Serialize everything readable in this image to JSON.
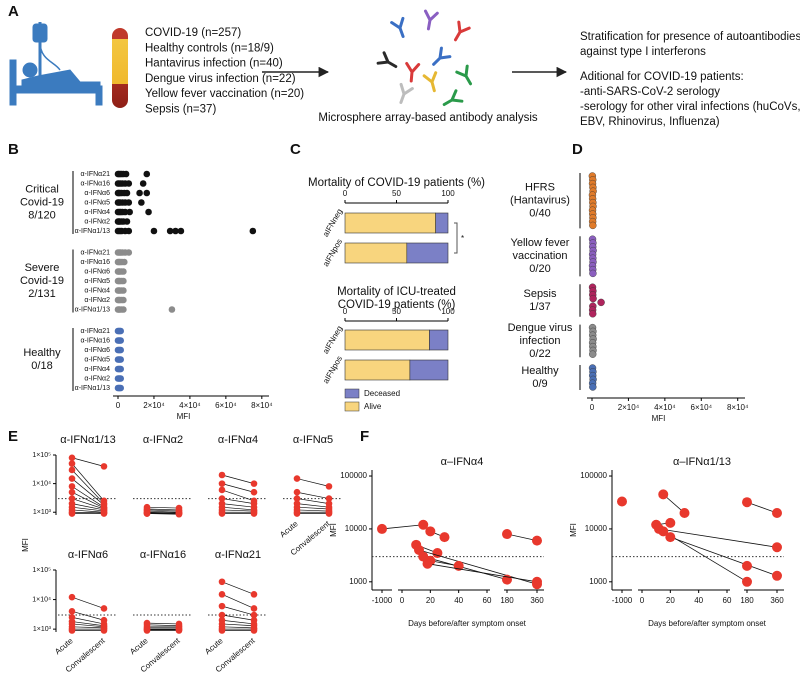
{
  "figure_a": {
    "panel": "A",
    "cohorts": [
      "COVID-19 (n=257)",
      "Healthy controls (n=18/9)",
      "Hantavirus infection (n=40)",
      "Dengue virus infection (n=22)",
      "Yellow fever vaccination (n=20)",
      "Sepsis (n=37)"
    ],
    "caption": "Microsphere array-based antibody analysis",
    "outcome": [
      "Stratification for presence of autoantibodies",
      "against type I interferons"
    ],
    "additional": [
      "Aditional for COVID-19 patients:",
      "-anti-SARS-CoV-2 serology",
      "-serology for other viral infections (huCoVs,",
      "EBV, Rhinovirus, Influenza)"
    ]
  },
  "chart_data": [
    {
      "type": "dot",
      "panel": "B",
      "xlabel": "MFI",
      "xlim": [
        0,
        84000
      ],
      "xticks": [
        0,
        {
          "value": 20000,
          "label": "2×10⁴"
        },
        {
          "value": 40000,
          "label": "4×10⁴"
        },
        {
          "value": 60000,
          "label": "6×10⁴"
        },
        {
          "value": 80000,
          "label": "8×10⁴"
        }
      ],
      "groups": [
        {
          "label": [
            "Critical",
            "Covid-19",
            "8/120"
          ],
          "color": "#111111",
          "rows": [
            {
              "name": "α-IFNα21",
              "values": [
                0,
                500,
                1200,
                2000,
                3000,
                4500,
                16000
              ]
            },
            {
              "name": "α-IFNα16",
              "values": [
                0,
                600,
                1500,
                2500,
                4000,
                6000,
                14000
              ]
            },
            {
              "name": "α-IFNα6",
              "values": [
                0,
                400,
                1000,
                2000,
                3500,
                5000,
                12000,
                16000
              ]
            },
            {
              "name": "α-IFNα5",
              "values": [
                0,
                500,
                1200,
                2500,
                4000,
                6000,
                13000
              ]
            },
            {
              "name": "α-IFNα4",
              "values": [
                0,
                800,
                1500,
                2500,
                4000,
                6500,
                17000
              ]
            },
            {
              "name": "α-IFNα2",
              "values": [
                0,
                500,
                1000,
                2000,
                3000,
                5000
              ]
            },
            {
              "name": "α-IFNα1/13",
              "values": [
                0,
                1000,
                2000,
                4000,
                6000,
                20000,
                29000,
                32000,
                35000,
                75000
              ]
            }
          ]
        },
        {
          "label": [
            "Severe",
            "Covid-19",
            "2/131"
          ],
          "color": "#8c8c8c",
          "rows": [
            {
              "name": "α-IFNα21",
              "values": [
                0,
                800,
                1500,
                2500,
                4000,
                6000
              ]
            },
            {
              "name": "α-IFNα16",
              "values": [
                0,
                600,
                1200,
                2200,
                3500
              ]
            },
            {
              "name": "α-IFNα6",
              "values": [
                0,
                500,
                1000,
                2000,
                3000
              ]
            },
            {
              "name": "α-IFNα5",
              "values": [
                0,
                500,
                1000,
                2000,
                3000
              ]
            },
            {
              "name": "α-IFNα4",
              "values": [
                0,
                500,
                1000,
                2000,
                3000
              ]
            },
            {
              "name": "α-IFNα2",
              "values": [
                0,
                500,
                1000,
                2000,
                3000
              ]
            },
            {
              "name": "α-IFNα1/13",
              "values": [
                0,
                500,
                1000,
                2000,
                3000,
                30000
              ]
            }
          ]
        },
        {
          "label": [
            "Healthy",
            "0/18"
          ],
          "color": "#4a6fb5",
          "rows": [
            {
              "name": "α-IFNα21",
              "values": [
                0,
                500,
                1000,
                1500
              ]
            },
            {
              "name": "α-IFNα16",
              "values": [
                0,
                500,
                1000,
                1500
              ]
            },
            {
              "name": "α-IFNα6",
              "values": [
                0,
                500,
                1000,
                1500
              ]
            },
            {
              "name": "α-IFNα5",
              "values": [
                0,
                500,
                1000,
                1500
              ]
            },
            {
              "name": "α-IFNα4",
              "values": [
                0,
                500,
                1000,
                1500
              ]
            },
            {
              "name": "α-IFNα2",
              "values": [
                0,
                500,
                1000,
                1500
              ]
            },
            {
              "name": "α-IFNα1/13",
              "values": [
                0,
                500,
                1000,
                1500
              ]
            }
          ]
        }
      ]
    },
    {
      "type": "stacked",
      "panel": "C",
      "title": [
        "Mortality of COVID-19 patients (%)"
      ],
      "xlim": [
        0,
        100
      ],
      "xticks": [
        0,
        50,
        100
      ],
      "categories": [
        "aIFNneg",
        "aIFNpos"
      ],
      "significance": "*",
      "legend": false,
      "series": [
        {
          "name": "Deceased",
          "color": "#7b80c6",
          "values": [
            12,
            40
          ]
        },
        {
          "name": "Alive",
          "color": "#f8d57e",
          "values": [
            88,
            60
          ]
        }
      ]
    },
    {
      "type": "stacked",
      "title": [
        "Mortality of ICU-treated",
        "COVID-19 patients (%)"
      ],
      "xlim": [
        0,
        100
      ],
      "xticks": [
        0,
        50,
        100
      ],
      "categories": [
        "aIFNneg",
        "aIFNpos"
      ],
      "legend": true,
      "series": [
        {
          "name": "Deceased",
          "color": "#7b80c6",
          "values": [
            18,
            37
          ]
        },
        {
          "name": "Alive",
          "color": "#f8d57e",
          "values": [
            82,
            63
          ]
        }
      ]
    },
    {
      "type": "strip",
      "panel": "D",
      "xlabel": "MFI",
      "xlim": [
        0,
        84000
      ],
      "xticks": [
        0,
        {
          "value": 20000,
          "label": "2×10⁴"
        },
        {
          "value": 40000,
          "label": "4×10⁴"
        },
        {
          "value": 60000,
          "label": "6×10⁴"
        },
        {
          "value": 80000,
          "label": "8×10⁴"
        }
      ],
      "groups": [
        {
          "label": [
            "HFRS",
            "(Hantavirus)",
            "0/40"
          ],
          "color": "#e07b2a",
          "values": [
            200,
            400,
            300,
            500,
            600,
            250,
            350,
            450,
            550,
            300,
            400,
            500,
            350,
            450
          ]
        },
        {
          "label": [
            "Yellow fever",
            "vaccination",
            "0/20"
          ],
          "color": "#8b5fbf",
          "values": [
            300,
            500,
            400,
            600,
            350,
            450,
            550,
            300,
            400,
            500
          ]
        },
        {
          "label": [
            "Sepsis",
            "1/37"
          ],
          "color": "#b0245d",
          "values": [
            300,
            500,
            400,
            600,
            5000,
            450,
            350,
            400
          ]
        },
        {
          "label": [
            "Dengue virus",
            "infection",
            "0/22"
          ],
          "color": "#8c8c8c",
          "values": [
            300,
            500,
            400,
            600,
            350,
            450,
            550,
            400
          ]
        },
        {
          "label": [
            "Healthy",
            "0/9"
          ],
          "color": "#4a6fb5",
          "values": [
            300,
            500,
            400,
            600,
            350,
            450
          ]
        }
      ]
    },
    {
      "type": "paired",
      "panel": "E",
      "ylabel": "MFI",
      "color": "#e8382d",
      "plots": [
        {
          "title": "α-IFNα1/13",
          "ylim": [
            800,
            100000
          ],
          "threshold": 3000,
          "yticks": [
            {
              "value": 100000,
              "label": "1×10⁵"
            },
            {
              "value": 10000,
              "label": "1×10⁴"
            },
            {
              "value": 1000,
              "label": "1×10³"
            }
          ],
          "acute": [
            80000,
            50000,
            30000,
            15000,
            8000,
            5000,
            3000,
            2000,
            1500,
            1200,
            1000,
            900
          ],
          "convalescent": [
            40000,
            2500,
            2000,
            1800,
            1500,
            1400,
            1300,
            1200,
            1100,
            1000,
            950,
            900
          ]
        },
        {
          "title": "α-IFNα2",
          "ylim": [
            800,
            100000
          ],
          "threshold": 3000,
          "acute": [
            1500,
            1300,
            1200,
            1100,
            1000,
            950,
            900,
            900
          ],
          "convalescent": [
            1400,
            1200,
            1100,
            1000,
            950,
            900,
            900,
            850
          ]
        },
        {
          "title": "α-IFNα4",
          "ylim": [
            800,
            100000
          ],
          "threshold": 3000,
          "acute": [
            20000,
            10000,
            6000,
            3000,
            2000,
            1500,
            1200,
            1000,
            900
          ],
          "convalescent": [
            10000,
            5000,
            2500,
            2000,
            1500,
            1200,
            1100,
            1000,
            900
          ]
        },
        {
          "title": "α-IFNα5",
          "ylim": [
            800,
            100000
          ],
          "threshold": 3000,
          "categories": [
            "Acute",
            "Convalescent"
          ],
          "acute": [
            15000,
            5000,
            3000,
            2000,
            1500,
            1200,
            1000,
            900
          ],
          "convalescent": [
            8000,
            3000,
            2000,
            1500,
            1300,
            1100,
            1000,
            900
          ]
        },
        {
          "title": "α-IFNα6",
          "ylim": [
            800,
            100000
          ],
          "threshold": 3000,
          "categories": [
            "Acute",
            "Convalescent"
          ],
          "yticks": [
            {
              "value": 100000,
              "label": "1×10⁵"
            },
            {
              "value": 10000,
              "label": "1×10⁴"
            },
            {
              "value": 1000,
              "label": "1×10³"
            }
          ],
          "acute": [
            12000,
            4000,
            2500,
            1800,
            1500,
            1200,
            1000,
            900
          ],
          "convalescent": [
            5000,
            2000,
            1500,
            1300,
            1200,
            1100,
            1000,
            900
          ]
        },
        {
          "title": "α-IFNα16",
          "ylim": [
            800,
            100000
          ],
          "threshold": 3000,
          "categories": [
            "Acute",
            "Convalescent"
          ],
          "acute": [
            1600,
            1400,
            1200,
            1100,
            1000,
            950,
            900
          ],
          "convalescent": [
            1500,
            1300,
            1200,
            1100,
            1000,
            950,
            900
          ]
        },
        {
          "title": "α-IFNα21",
          "ylim": [
            800,
            100000
          ],
          "threshold": 3000,
          "categories": [
            "Acute",
            "Convalescent"
          ],
          "acute": [
            40000,
            15000,
            6000,
            3000,
            2000,
            1500,
            1200,
            1000,
            900
          ],
          "convalescent": [
            15000,
            5000,
            3000,
            2000,
            1500,
            1300,
            1100,
            1000,
            900
          ]
        }
      ]
    },
    {
      "type": "line",
      "panel": "F",
      "title": "α–IFNα4",
      "xlabel": "Days before/after symptom onset",
      "ylabel": "MFI",
      "color": "#e8382d",
      "ylim": [
        700,
        130000
      ],
      "yticks": [
        1000,
        10000,
        100000
      ],
      "threshold": 3000,
      "xticks": [
        -1000,
        0,
        20,
        40,
        60,
        180,
        360
      ],
      "segments": [
        {
          "x": [
            -1000,
            15
          ],
          "y": [
            10000,
            12000
          ]
        },
        {
          "x": [
            180,
            360
          ],
          "y": [
            8000,
            6000
          ]
        },
        {
          "x": [
            20,
            30
          ],
          "y": [
            9000,
            7000
          ]
        },
        {
          "x": [
            10,
            25
          ],
          "y": [
            5000,
            3500
          ]
        },
        {
          "x": [
            12,
            360
          ],
          "y": [
            4000,
            900
          ]
        },
        {
          "x": [
            15,
            180
          ],
          "y": [
            3000,
            1100
          ]
        },
        {
          "x": [
            20,
            40
          ],
          "y": [
            2500,
            2000
          ]
        },
        {
          "x": [
            18,
            360
          ],
          "y": [
            2200,
            1000
          ]
        }
      ]
    },
    {
      "type": "line",
      "title": "α–IFNα1/13",
      "xlabel": "Days before/after symptom onset",
      "ylabel": "MFI",
      "color": "#e8382d",
      "ylim": [
        700,
        130000
      ],
      "yticks": [
        1000,
        10000,
        100000
      ],
      "threshold": 3000,
      "xticks": [
        -1000,
        0,
        20,
        40,
        60,
        180,
        360
      ],
      "segments": [
        {
          "x": [
            -1000
          ],
          "y": [
            33000
          ]
        },
        {
          "x": [
            15,
            30
          ],
          "y": [
            45000,
            20000
          ]
        },
        {
          "x": [
            180,
            360
          ],
          "y": [
            32000,
            20000
          ]
        },
        {
          "x": [
            10,
            20
          ],
          "y": [
            12000,
            13000
          ]
        },
        {
          "x": [
            12,
            360
          ],
          "y": [
            10000,
            4500
          ]
        },
        {
          "x": [
            15,
            180
          ],
          "y": [
            9000,
            1000
          ]
        },
        {
          "x": [
            20,
            360
          ],
          "y": [
            7000,
            1300
          ]
        },
        {
          "x": [
            180
          ],
          "y": [
            2000
          ]
        }
      ]
    }
  ]
}
